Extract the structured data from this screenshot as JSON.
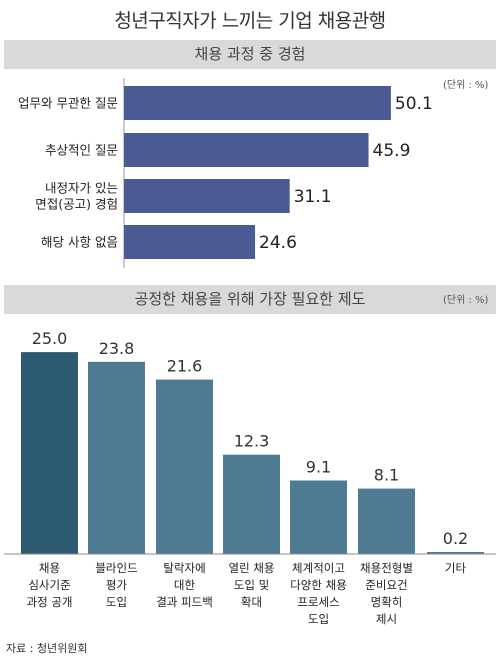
{
  "title": "청년구직자가 느끼는 기업 채용관행",
  "source": "자료 : 청년위원회",
  "colors": {
    "hbar": "#4a5b93",
    "vbar_highlight": "#2b5a72",
    "vbar": "#4e7a94",
    "header_bg": "#d9d9d9"
  },
  "chart_data": [
    {
      "type": "bar",
      "orientation": "horizontal",
      "title": "채용 과정 중 경험",
      "unit": "(단위 : %)",
      "categories": [
        [
          "업무와 무관한 질문"
        ],
        [
          "추상적인 질문"
        ],
        [
          "내정자가 있는",
          "면접(공고) 경험"
        ],
        [
          "해당 사항 없음"
        ]
      ],
      "values": [
        50.1,
        45.9,
        31.1,
        24.6
      ],
      "value_labels": [
        "50.1",
        "45.9",
        "31.1",
        "24.6"
      ],
      "xlim": [
        0,
        58
      ]
    },
    {
      "type": "bar",
      "orientation": "vertical",
      "title": "공정한 채용을 위해 가장 필요한 제도",
      "unit": "(단위 : %)",
      "categories": [
        [
          "채용",
          "심사기준",
          "과정 공개"
        ],
        [
          "블라인드",
          "평가",
          "도입"
        ],
        [
          "탈락자에",
          "대한",
          "결과 피드백"
        ],
        [
          "열린 채용",
          "도입 및",
          "확대"
        ],
        [
          "체계적이고",
          "다양한 채용",
          "프로세스",
          "도입"
        ],
        [
          "채용전형별",
          "준비요건",
          "명확히",
          "제시"
        ],
        [
          "기타"
        ]
      ],
      "values": [
        25.0,
        23.8,
        21.6,
        12.3,
        9.1,
        8.1,
        0.2
      ],
      "value_labels": [
        "25.0",
        "23.8",
        "21.6",
        "12.3",
        "9.1",
        "8.1",
        "0.2"
      ],
      "ylim": [
        0,
        26.5
      ]
    }
  ]
}
